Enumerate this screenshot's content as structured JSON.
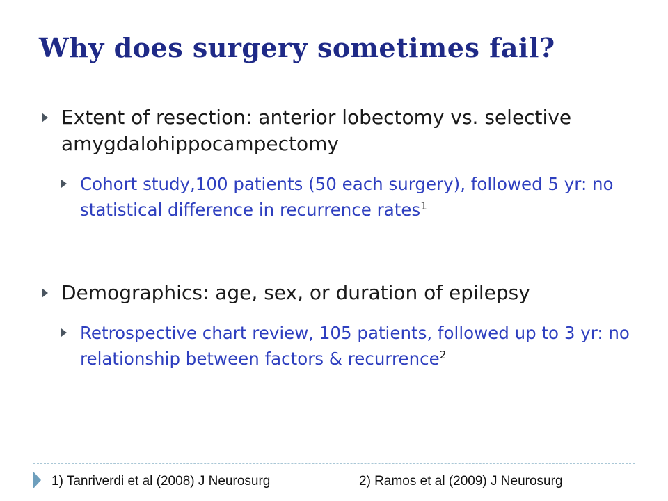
{
  "slide": {
    "title": "Why does surgery sometimes fail?",
    "bullets": [
      {
        "text": "Extent of resection: anterior lobectomy vs. selective amygdalohippocampectomy",
        "sub": {
          "text": "Cohort study,100 patients (50 each surgery), followed 5 yr: no statistical difference in recurrence rates",
          "ref": "1"
        }
      },
      {
        "text": "Demographics: age, sex, or duration of epilepsy",
        "sub": {
          "text": "Retrospective chart review, 105 patients, followed up to 3 yr: no relationship between factors & recurrence",
          "ref": "2"
        }
      }
    ],
    "references": [
      "1) Tanriverdi et al (2008) J Neurosurg",
      "2) Ramos et al (2009) J Neurosurg"
    ]
  },
  "colors": {
    "title": "#1f2a87",
    "subbullet": "#2e3fbf",
    "body": "#1a1a1a",
    "accent": "#6e9fbd",
    "divider": "#a9c7d6"
  },
  "icons": {
    "bullet": "triangle-right-icon",
    "footer": "triangle-right-icon"
  }
}
